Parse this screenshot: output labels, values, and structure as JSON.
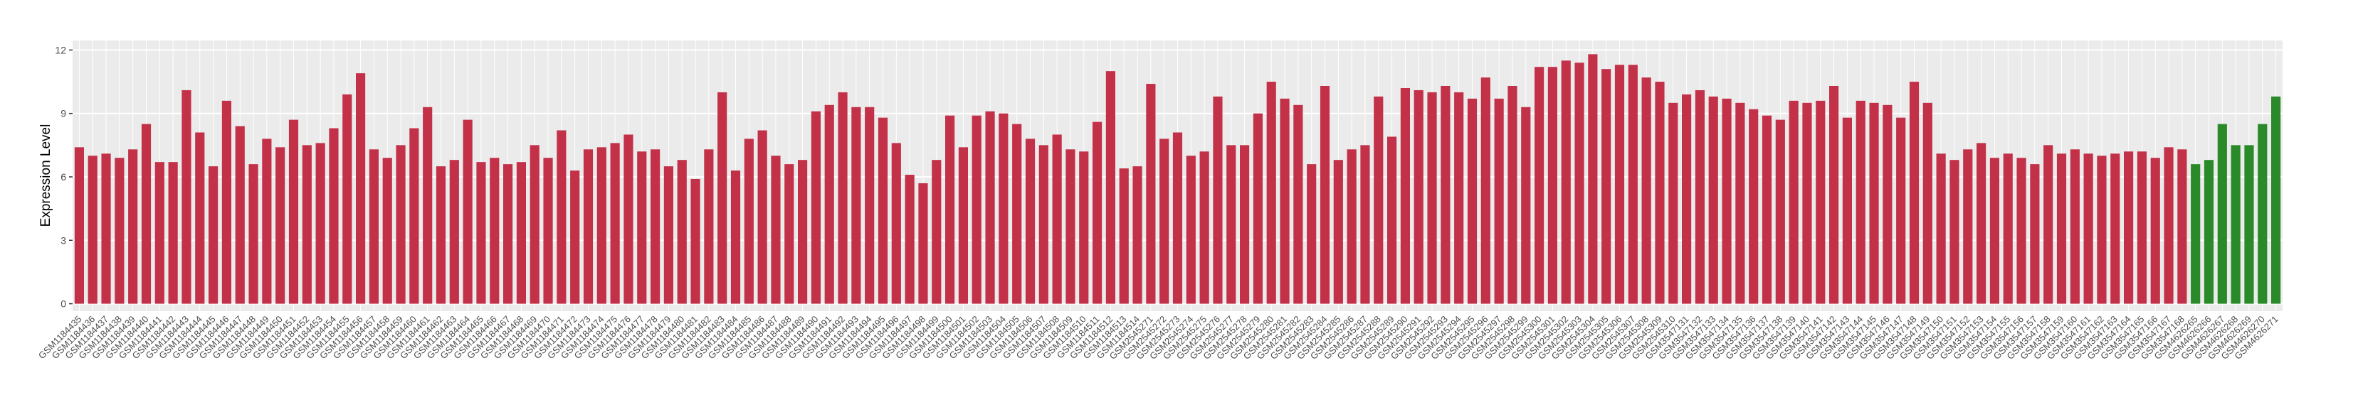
{
  "chart_data": {
    "type": "bar",
    "y_label": "Expression Level",
    "categories": [
      "GSM1184435",
      "GSM1184436",
      "GSM1184437",
      "GSM1184438",
      "GSM1184439",
      "GSM1184440",
      "GSM1184441",
      "GSM1184442",
      "GSM1184443",
      "GSM1184444",
      "GSM1184445",
      "GSM1184446",
      "GSM1184447",
      "GSM1184448",
      "GSM1184449",
      "GSM1184450",
      "GSM1184451",
      "GSM1184452",
      "GSM1184453",
      "GSM1184454",
      "GSM1184455",
      "GSM1184456",
      "GSM1184457",
      "GSM1184458",
      "GSM1184459",
      "GSM1184460",
      "GSM1184461",
      "GSM1184462",
      "GSM1184463",
      "GSM1184464",
      "GSM1184465",
      "GSM1184466",
      "GSM1184467",
      "GSM1184468",
      "GSM1184469",
      "GSM1184470",
      "GSM1184471",
      "GSM1184472",
      "GSM1184473",
      "GSM1184474",
      "GSM1184475",
      "GSM1184476",
      "GSM1184477",
      "GSM1184478",
      "GSM1184479",
      "GSM1184480",
      "GSM1184481",
      "GSM1184482",
      "GSM1184483",
      "GSM1184484",
      "GSM1184485",
      "GSM1184486",
      "GSM1184487",
      "GSM1184488",
      "GSM1184489",
      "GSM1184490",
      "GSM1184491",
      "GSM1184492",
      "GSM1184493",
      "GSM1184494",
      "GSM1184495",
      "GSM1184496",
      "GSM1184497",
      "GSM1184498",
      "GSM1184499",
      "GSM1184500",
      "GSM1184501",
      "GSM1184502",
      "GSM1184503",
      "GSM1184504",
      "GSM1184505",
      "GSM1184506",
      "GSM1184507",
      "GSM1184508",
      "GSM1184509",
      "GSM1184510",
      "GSM1184511",
      "GSM1184512",
      "GSM1184513",
      "GSM1184514",
      "GSM2545271",
      "GSM2545272",
      "GSM2545273",
      "GSM2545274",
      "GSM2545275",
      "GSM2545276",
      "GSM2545277",
      "GSM2545278",
      "GSM2545279",
      "GSM2545280",
      "GSM2545281",
      "GSM2545282",
      "GSM2545283",
      "GSM2545284",
      "GSM2545285",
      "GSM2545286",
      "GSM2545287",
      "GSM2545288",
      "GSM2545289",
      "GSM2545290",
      "GSM2545291",
      "GSM2545292",
      "GSM2545293",
      "GSM2545294",
      "GSM2545295",
      "GSM2545296",
      "GSM2545297",
      "GSM2545298",
      "GSM2545299",
      "GSM2545300",
      "GSM2545301",
      "GSM2545302",
      "GSM2545303",
      "GSM2545304",
      "GSM2545305",
      "GSM2545306",
      "GSM2545307",
      "GSM2545308",
      "GSM2545309",
      "GSM2545310",
      "GSM3547131",
      "GSM3547132",
      "GSM3547133",
      "GSM3547134",
      "GSM3547135",
      "GSM3547136",
      "GSM3547137",
      "GSM3547138",
      "GSM3547139",
      "GSM3547140",
      "GSM3547141",
      "GSM3547142",
      "GSM3547143",
      "GSM3547144",
      "GSM3547145",
      "GSM3547146",
      "GSM3547147",
      "GSM3547148",
      "GSM3547149",
      "GSM3547150",
      "GSM3547151",
      "GSM3547152",
      "GSM3547153",
      "GSM3547154",
      "GSM3547155",
      "GSM3547156",
      "GSM3547157",
      "GSM3547158",
      "GSM3547159",
      "GSM3547160",
      "GSM3547161",
      "GSM3547162",
      "GSM3547163",
      "GSM3547164",
      "GSM3547165",
      "GSM3547166",
      "GSM3547167",
      "GSM3547168",
      "GSM4626265",
      "GSM4626266",
      "GSM4626267",
      "GSM4626268",
      "GSM4626269",
      "GSM4626270",
      "GSM4626271"
    ],
    "values": [
      7.4,
      7.0,
      7.1,
      6.9,
      7.3,
      8.5,
      6.7,
      6.7,
      10.1,
      8.1,
      6.5,
      9.6,
      8.4,
      6.6,
      7.8,
      7.4,
      8.7,
      7.5,
      7.6,
      8.3,
      9.9,
      10.9,
      7.3,
      6.9,
      7.5,
      8.3,
      9.3,
      6.5,
      6.8,
      8.7,
      6.7,
      6.9,
      6.6,
      6.7,
      7.5,
      6.9,
      8.2,
      6.3,
      7.3,
      7.4,
      7.6,
      8.0,
      7.2,
      7.3,
      6.5,
      6.8,
      5.9,
      7.3,
      10.0,
      6.3,
      7.8,
      8.2,
      7.0,
      6.6,
      6.8,
      9.1,
      9.4,
      10.0,
      9.3,
      9.3,
      8.8,
      7.6,
      6.1,
      5.7,
      6.8,
      8.9,
      7.4,
      8.9,
      9.1,
      9.0,
      8.5,
      7.8,
      7.5,
      8.0,
      7.3,
      7.2,
      8.6,
      11.0,
      6.4,
      6.5,
      10.4,
      7.8,
      8.1,
      7.0,
      7.2,
      9.8,
      7.5,
      7.5,
      9.0,
      10.5,
      9.7,
      9.4,
      6.6,
      10.3,
      6.8,
      7.3,
      7.5,
      9.8,
      7.9,
      10.2,
      10.1,
      10.0,
      10.3,
      10.0,
      9.7,
      10.7,
      9.7,
      10.3,
      9.3,
      11.2,
      11.2,
      11.5,
      11.4,
      11.8,
      11.1,
      11.3,
      11.3,
      10.7,
      10.5,
      9.5,
      9.9,
      10.1,
      9.8,
      9.7,
      9.5,
      9.2,
      8.9,
      8.7,
      9.6,
      9.5,
      9.6,
      10.3,
      8.8,
      9.6,
      9.5,
      9.4,
      8.8,
      10.5,
      9.5,
      7.1,
      6.8,
      7.3,
      7.6,
      6.9,
      7.1,
      6.9,
      6.6,
      7.5,
      7.1,
      7.3,
      7.1,
      7.0,
      7.1,
      7.2,
      7.2,
      6.9,
      7.4,
      7.3,
      6.6,
      6.8,
      8.5,
      7.5,
      7.5,
      8.5,
      9.8
    ],
    "colors": [
      "#c33149",
      "#c33149",
      "#c33149",
      "#c33149",
      "#c33149",
      "#c33149",
      "#c33149",
      "#c33149",
      "#c33149",
      "#c33149",
      "#c33149",
      "#c33149",
      "#c33149",
      "#c33149",
      "#c33149",
      "#c33149",
      "#c33149",
      "#c33149",
      "#c33149",
      "#c33149",
      "#c33149",
      "#c33149",
      "#c33149",
      "#c33149",
      "#c33149",
      "#c33149",
      "#c33149",
      "#c33149",
      "#c33149",
      "#c33149",
      "#c33149",
      "#c33149",
      "#c33149",
      "#c33149",
      "#c33149",
      "#c33149",
      "#c33149",
      "#c33149",
      "#c33149",
      "#c33149",
      "#c33149",
      "#c33149",
      "#c33149",
      "#c33149",
      "#c33149",
      "#c33149",
      "#c33149",
      "#c33149",
      "#c33149",
      "#c33149",
      "#c33149",
      "#c33149",
      "#c33149",
      "#c33149",
      "#c33149",
      "#c33149",
      "#c33149",
      "#c33149",
      "#c33149",
      "#c33149",
      "#c33149",
      "#c33149",
      "#c33149",
      "#c33149",
      "#c33149",
      "#c33149",
      "#c33149",
      "#c33149",
      "#c33149",
      "#c33149",
      "#c33149",
      "#c33149",
      "#c33149",
      "#c33149",
      "#c33149",
      "#c33149",
      "#c33149",
      "#c33149",
      "#c33149",
      "#c33149",
      "#c33149",
      "#c33149",
      "#c33149",
      "#c33149",
      "#c33149",
      "#c33149",
      "#c33149",
      "#c33149",
      "#c33149",
      "#c33149",
      "#c33149",
      "#c33149",
      "#c33149",
      "#c33149",
      "#c33149",
      "#c33149",
      "#c33149",
      "#c33149",
      "#c33149",
      "#c33149",
      "#c33149",
      "#c33149",
      "#c33149",
      "#c33149",
      "#c33149",
      "#c33149",
      "#c33149",
      "#c33149",
      "#c33149",
      "#c33149",
      "#c33149",
      "#c33149",
      "#c33149",
      "#c33149",
      "#c33149",
      "#c33149",
      "#c33149",
      "#c33149",
      "#c33149",
      "#c33149",
      "#c33149",
      "#c33149",
      "#c33149",
      "#c33149",
      "#c33149",
      "#c33149",
      "#c33149",
      "#c33149",
      "#c33149",
      "#c33149",
      "#c33149",
      "#c33149",
      "#c33149",
      "#c33149",
      "#c33149",
      "#c33149",
      "#c33149",
      "#c33149",
      "#c33149",
      "#c33149",
      "#c33149",
      "#c33149",
      "#c33149",
      "#c33149",
      "#c33149",
      "#c33149",
      "#c33149",
      "#c33149",
      "#c33149",
      "#c33149",
      "#c33149",
      "#c33149",
      "#c33149",
      "#c33149",
      "#c33149",
      "#c33149",
      "#c33149",
      "#c33149",
      "#2a8a2a",
      "#2a8a2a",
      "#2a8a2a",
      "#2a8a2a",
      "#2a8a2a",
      "#2a8a2a",
      "#2a8a2a"
    ],
    "ylim": [
      -0.35,
      12.45
    ],
    "yticks": [
      0,
      3,
      6,
      9,
      12
    ],
    "grid": true
  }
}
